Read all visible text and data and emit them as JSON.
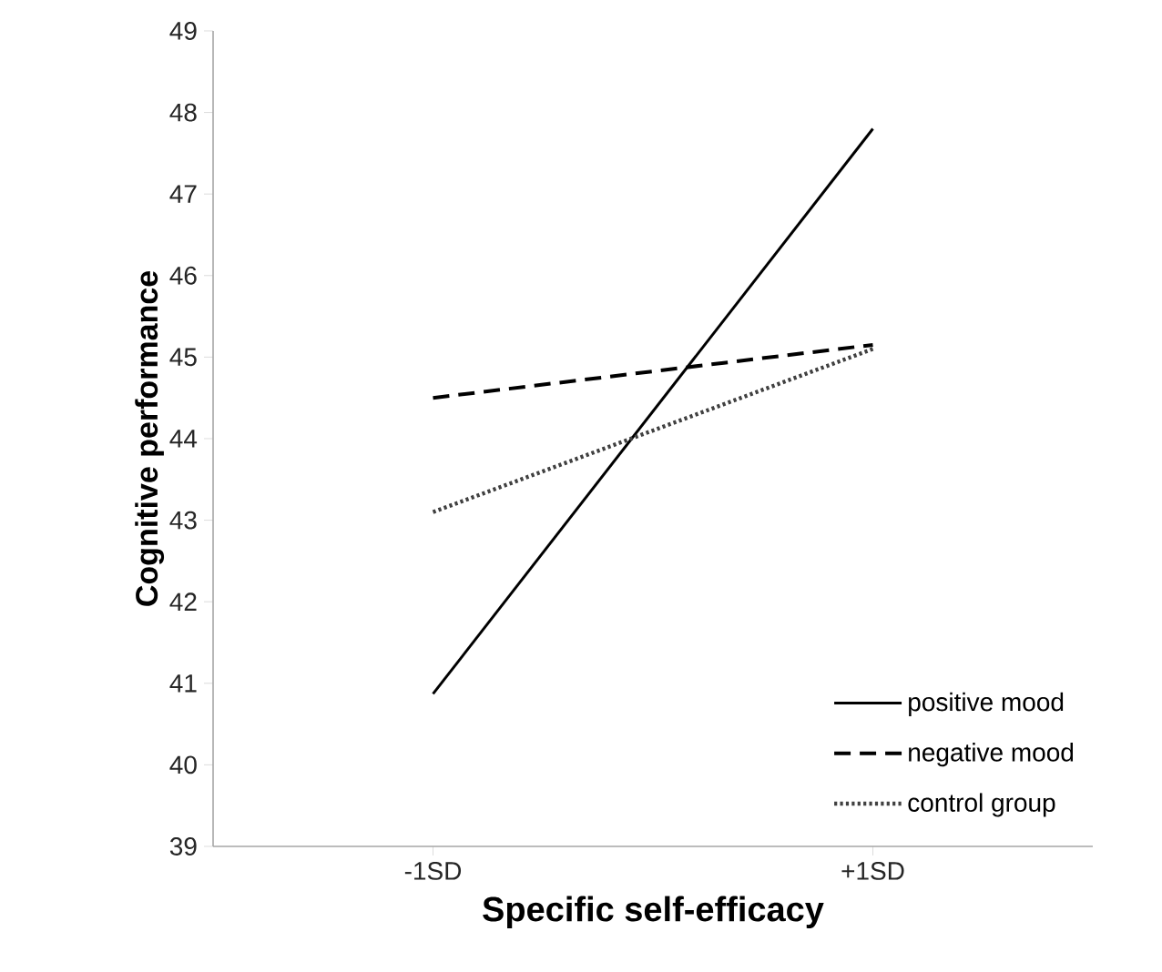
{
  "chart_data": {
    "type": "line",
    "xlabel": "Specific self-efficacy",
    "ylabel": "Cognitive performance",
    "categories": [
      "-1SD",
      "+1SD"
    ],
    "series": [
      {
        "name": "positive mood",
        "color": "#000000",
        "line_style": "solid",
        "values": [
          40.87,
          47.8
        ]
      },
      {
        "name": "negative mood",
        "color": "#000000",
        "line_style": "dashed",
        "values": [
          44.5,
          45.15
        ]
      },
      {
        "name": "control group",
        "color": "#404040",
        "line_style": "dotted",
        "values": [
          43.1,
          45.1
        ]
      }
    ],
    "ylim": [
      39,
      49
    ],
    "yticks": [
      39,
      40,
      41,
      42,
      43,
      44,
      45,
      46,
      47,
      48,
      49
    ],
    "legend": "bottom right",
    "grid": false
  }
}
